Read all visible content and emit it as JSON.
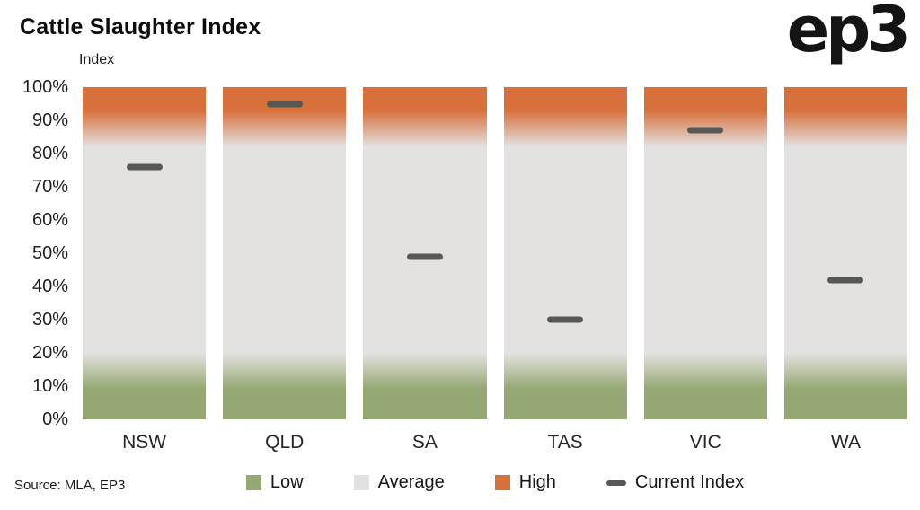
{
  "page": {
    "title": "Cattle Slaughter Index",
    "logo": "ep3",
    "axis_label": "Index",
    "source": "Source: MLA, EP3"
  },
  "chart_data": {
    "type": "bar",
    "title": "Cattle Slaughter Index",
    "ylabel": "Index",
    "ylim": [
      0,
      100
    ],
    "ytick_labels": [
      "100%",
      "90%",
      "80%",
      "70%",
      "60%",
      "50%",
      "40%",
      "30%",
      "20%",
      "10%",
      "0%"
    ],
    "categories": [
      "NSW",
      "QLD",
      "SA",
      "TAS",
      "VIC",
      "WA"
    ],
    "bands": [
      {
        "name": "Low",
        "color": "#95a873",
        "from": 0,
        "to": 20
      },
      {
        "name": "Average",
        "color": "#e3e2e0",
        "from": 20,
        "to": 82
      },
      {
        "name": "High",
        "color": "#d8703c",
        "from": 82,
        "to": 100
      }
    ],
    "current_index": {
      "name": "Current Index",
      "color": "#575756",
      "values": [
        76,
        95,
        49,
        30,
        87,
        42
      ]
    },
    "legend": [
      {
        "label": "Low",
        "swatch": "square",
        "color": "#95a873"
      },
      {
        "label": "Average",
        "swatch": "square",
        "color": "#e3e2e0"
      },
      {
        "label": "High",
        "swatch": "square",
        "color": "#d8703c"
      },
      {
        "label": "Current Index",
        "swatch": "dash",
        "color": "#575756"
      }
    ],
    "legend_position": "bottom"
  }
}
